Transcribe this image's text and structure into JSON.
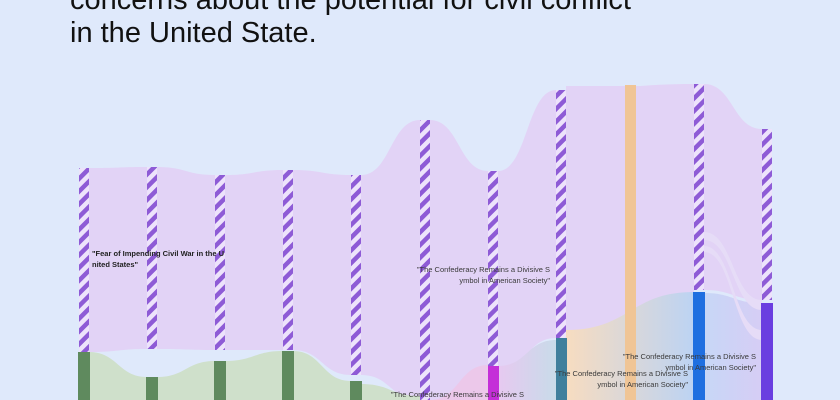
{
  "headline": {
    "line1": "concerns about the potential for civil conflict",
    "line2": "in the United State."
  },
  "colors": {
    "background": "#dfe9fb",
    "purple_flow": "#e2d3f6",
    "green_flow": "#cfe0cb",
    "purple_node": "#8e5bd6",
    "green_node": "#5f8a5e",
    "orange_node": "#f0c596",
    "magenta_node": "#c42fd8",
    "blue_node": "#1f6fe0",
    "violet_node": "#6a3ee0",
    "teal_node": "#3f7f9c"
  },
  "labels": [
    {
      "id": "label-fear",
      "lines": [
        "\"Fear of Impending Civil War in the U",
        "nited States\""
      ],
      "bold": true
    },
    {
      "id": "label-confederacy-1",
      "lines": [
        "\"The Confederacy Remains a Divisive S",
        "ymbol in American Society\""
      ],
      "bold": false
    },
    {
      "id": "label-confederacy-2",
      "lines": [
        "\"The Confederacy Remains a Divisive S",
        "ymbol in American Society\""
      ],
      "bold": false
    },
    {
      "id": "label-confederacy-3",
      "lines": [
        "\"The Confederacy Remains a Divisive S",
        "ymbol in American Society\""
      ],
      "bold": false
    },
    {
      "id": "label-confederacy-4",
      "lines": [
        "\"The Confederacy Remains a Divisive S"
      ],
      "bold": false
    }
  ]
}
